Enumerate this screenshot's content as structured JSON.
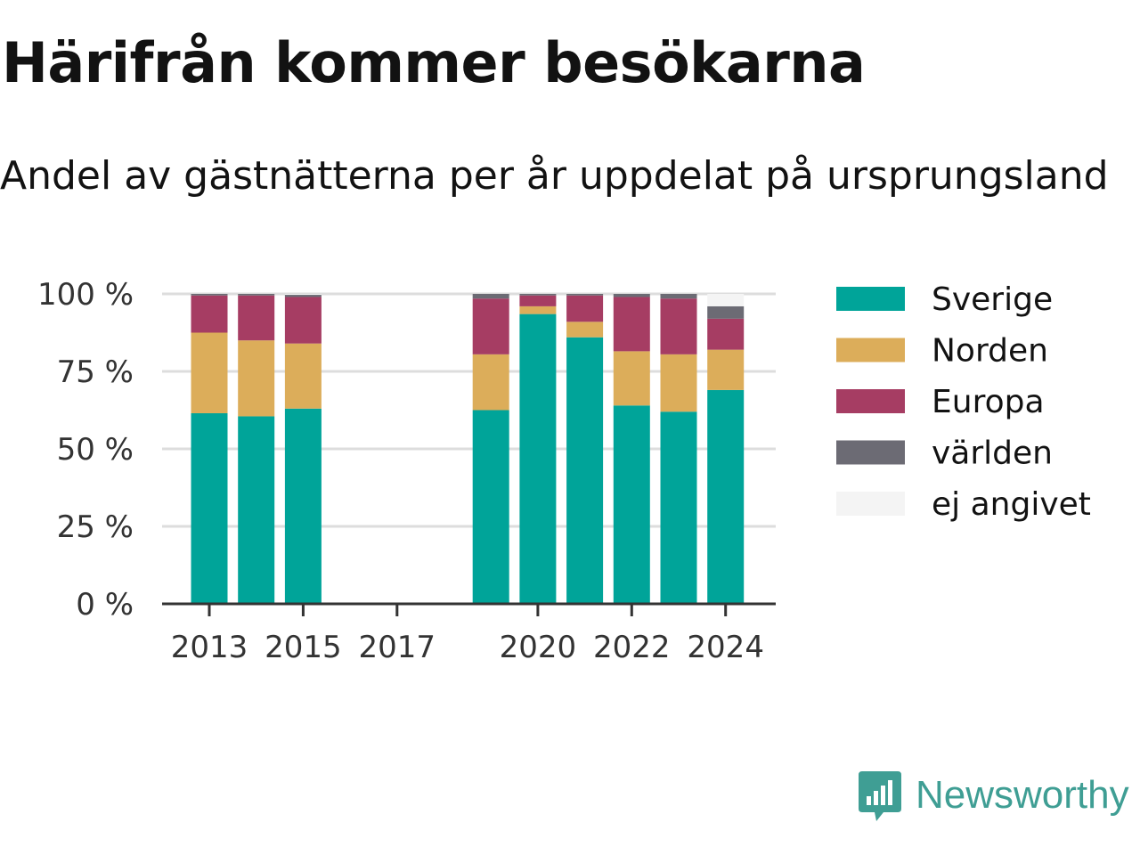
{
  "title": "Härifrån kommer besökarna",
  "subtitle": "Andel av gästnätterna per år uppdelat på ursprungsland",
  "brand": {
    "name": "Newsworthy",
    "color": "#3f9e94",
    "icon": "chart-speech-bubble-icon"
  },
  "chart_data": {
    "type": "bar",
    "stacked": true,
    "categories": [
      2013,
      2014,
      2015,
      2016,
      2017,
      2018,
      2019,
      2020,
      2021,
      2022,
      2023,
      2024
    ],
    "x_tick_labels": [
      "2013",
      "2015",
      "2017",
      "2020",
      "2022",
      "2024"
    ],
    "y_tick_labels": [
      "0 %",
      "25 %",
      "50 %",
      "75 %",
      "100 %"
    ],
    "ylim": [
      0,
      100
    ],
    "yticks": [
      0,
      25,
      50,
      75,
      100
    ],
    "grid": true,
    "legend_position": "right",
    "series": [
      {
        "name": "Sverige",
        "color": "#00a499",
        "values": [
          61.5,
          60.5,
          63,
          null,
          null,
          null,
          62.5,
          93.5,
          86,
          64,
          62,
          69
        ]
      },
      {
        "name": "Norden",
        "color": "#dcad5a",
        "values": [
          26,
          24.5,
          21,
          null,
          null,
          null,
          18,
          2.5,
          5,
          17.5,
          18.5,
          13
        ]
      },
      {
        "name": "Europa",
        "color": "#a63d63",
        "values": [
          12,
          14.5,
          15,
          null,
          null,
          null,
          18,
          3.5,
          8.5,
          17.5,
          18,
          10
        ]
      },
      {
        "name": "världen",
        "color": "#6c6b74",
        "values": [
          0.5,
          0.5,
          0.7,
          null,
          null,
          null,
          1.5,
          0.5,
          0.5,
          1,
          1.5,
          4
        ]
      },
      {
        "name": "ej angivet",
        "color": "#f4f4f4",
        "values": [
          0,
          0,
          0.3,
          null,
          null,
          null,
          0,
          0,
          0,
          0,
          0,
          4
        ]
      }
    ]
  }
}
